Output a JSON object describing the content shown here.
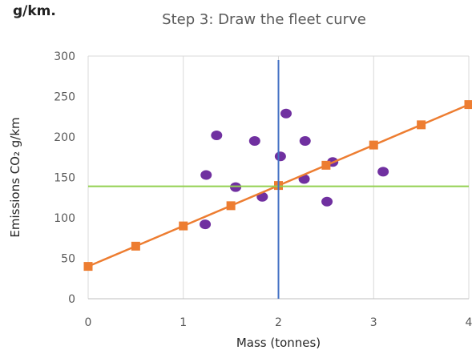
{
  "corner_note": "g/km.",
  "chart_data": {
    "type": "scatter",
    "title": "Step 3: Draw the fleet curve",
    "xlabel": "Mass (tonnes)",
    "ylabel": "Emissions CO₂ g/km",
    "xlim": [
      0,
      4
    ],
    "ylim": [
      0,
      300
    ],
    "x_ticks": [
      "0",
      "1",
      "2",
      "3",
      "4"
    ],
    "y_ticks": [
      "0",
      "50",
      "100",
      "150",
      "200",
      "250",
      "300"
    ],
    "grid": "vertical",
    "legend": "none",
    "series": [
      {
        "type": "scatter",
        "color": "#7030A0",
        "marker": "circle",
        "points": [
          [
            1.23,
            92
          ],
          [
            1.24,
            153
          ],
          [
            1.35,
            202
          ],
          [
            1.55,
            138
          ],
          [
            1.75,
            195
          ],
          [
            1.83,
            126
          ],
          [
            2.02,
            176
          ],
          [
            2.08,
            229
          ],
          [
            2.27,
            148
          ],
          [
            2.28,
            195
          ],
          [
            2.51,
            120
          ],
          [
            2.57,
            169
          ],
          [
            3.1,
            157
          ]
        ]
      },
      {
        "type": "line",
        "color": "#ED7D31",
        "marker": "square",
        "points": [
          [
            0,
            40
          ],
          [
            0.5,
            65
          ],
          [
            1,
            90
          ],
          [
            1.5,
            115
          ],
          [
            2,
            140
          ],
          [
            2.5,
            165
          ],
          [
            3,
            190
          ],
          [
            3.5,
            215
          ],
          [
            4,
            240
          ]
        ]
      },
      {
        "type": "hline",
        "color": "#92D050",
        "y": 139
      },
      {
        "type": "vline",
        "color": "#4472C4",
        "x": 2,
        "y_top": 295
      }
    ]
  }
}
